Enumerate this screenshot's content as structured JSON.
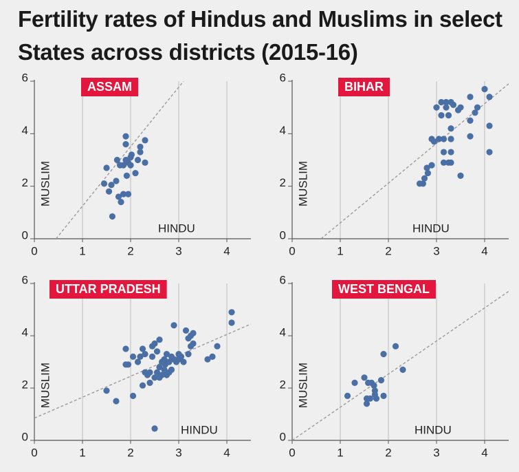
{
  "title": "Fertility rates of Hindus and Muslims in select States across districts (2015-16)",
  "chart_data": [
    {
      "type": "scatter",
      "title": "ASSAM",
      "xlabel": "HINDU",
      "ylabel": "MUSLIM",
      "color": "#4a6fa5",
      "xlim": [
        0,
        4.5
      ],
      "ylim": [
        0,
        6
      ],
      "xticks": [
        0,
        1,
        2,
        3,
        4
      ],
      "yticks": [
        0,
        2,
        4,
        6
      ],
      "grid": "x",
      "x": [
        1.45,
        1.5,
        1.55,
        1.6,
        1.62,
        1.7,
        1.72,
        1.75,
        1.78,
        1.8,
        1.85,
        1.85,
        1.9,
        1.9,
        1.9,
        1.92,
        1.95,
        1.95,
        2.0,
        2.0,
        2.02,
        2.1,
        2.15,
        2.2,
        2.2,
        2.3,
        2.3
      ],
      "y": [
        2.1,
        2.7,
        1.8,
        2.05,
        0.85,
        2.2,
        3.0,
        1.6,
        2.8,
        1.4,
        1.7,
        2.8,
        3.9,
        3.6,
        3.0,
        2.4,
        2.9,
        1.7,
        3.1,
        2.8,
        3.2,
        2.5,
        3.0,
        3.3,
        3.5,
        3.75,
        2.9
      ],
      "trendline": {
        "x": [
          0.45,
          3.1
        ],
        "y": [
          0,
          6
        ]
      }
    },
    {
      "type": "scatter",
      "title": "BIHAR",
      "xlabel": "HINDU",
      "ylabel": "MUSLIM",
      "color": "#4a6fa5",
      "xlim": [
        0,
        4.5
      ],
      "ylim": [
        0,
        6
      ],
      "xticks": [
        0,
        1,
        2,
        3,
        4
      ],
      "yticks": [
        0,
        2,
        4,
        6
      ],
      "grid": "x",
      "x": [
        2.65,
        2.72,
        2.75,
        2.8,
        2.82,
        2.9,
        2.9,
        2.95,
        3.0,
        3.05,
        3.1,
        3.1,
        3.15,
        3.15,
        3.15,
        3.2,
        3.2,
        3.25,
        3.25,
        3.3,
        3.3,
        3.3,
        3.3,
        3.3,
        3.35,
        3.45,
        3.5,
        3.5,
        3.7,
        3.7,
        3.7,
        3.8,
        3.85,
        4.0,
        4.1,
        4.1,
        4.1
      ],
      "y": [
        2.1,
        2.1,
        2.3,
        2.7,
        2.5,
        2.8,
        3.8,
        3.7,
        5.0,
        3.8,
        5.2,
        4.7,
        3.8,
        3.3,
        2.9,
        5.0,
        5.2,
        4.7,
        2.9,
        5.2,
        4.2,
        3.8,
        3.3,
        2.9,
        5.1,
        4.9,
        5.0,
        2.4,
        5.4,
        4.5,
        3.9,
        4.8,
        5.0,
        5.7,
        5.4,
        4.3,
        3.3
      ],
      "trendline": {
        "x": [
          0.6,
          4.5
        ],
        "y": [
          0,
          5.9
        ]
      }
    },
    {
      "type": "scatter",
      "title": "UTTAR PRADESH",
      "xlabel": "HINDU",
      "ylabel": "MUSLIM",
      "color": "#4a6fa5",
      "xlim": [
        0,
        4.5
      ],
      "ylim": [
        0,
        6
      ],
      "xticks": [
        0,
        1,
        2,
        3,
        4
      ],
      "yticks": [
        0,
        2,
        4,
        6
      ],
      "grid": "x",
      "x": [
        1.5,
        1.7,
        1.9,
        1.9,
        1.95,
        2.05,
        2.05,
        2.15,
        2.2,
        2.25,
        2.25,
        2.3,
        2.3,
        2.35,
        2.4,
        2.4,
        2.45,
        2.45,
        2.5,
        2.5,
        2.5,
        2.55,
        2.55,
        2.6,
        2.6,
        2.6,
        2.65,
        2.65,
        2.7,
        2.7,
        2.72,
        2.75,
        2.75,
        2.8,
        2.8,
        2.85,
        2.85,
        2.9,
        2.9,
        2.95,
        3.0,
        3.0,
        3.05,
        3.1,
        3.15,
        3.2,
        3.2,
        3.25,
        3.25,
        3.3,
        3.3,
        3.6,
        3.7,
        3.8,
        4.1,
        4.1
      ],
      "y": [
        1.9,
        1.5,
        3.5,
        2.9,
        2.9,
        3.2,
        1.7,
        3.0,
        3.2,
        3.5,
        2.1,
        2.6,
        3.3,
        2.5,
        2.2,
        2.6,
        3.6,
        3.2,
        3.7,
        2.4,
        0.45,
        3.4,
        2.6,
        3.85,
        2.8,
        2.4,
        3.0,
        2.5,
        3.1,
        2.7,
        2.9,
        3.3,
        2.5,
        3.0,
        2.6,
        3.2,
        2.7,
        4.4,
        3.1,
        3.0,
        3.3,
        3.1,
        3.2,
        3.0,
        4.2,
        3.9,
        3.3,
        4.0,
        3.6,
        4.1,
        3.7,
        3.1,
        3.2,
        3.6,
        4.9,
        4.5
      ],
      "trendline": {
        "x": [
          0,
          4.5
        ],
        "y": [
          0.85,
          4.45
        ]
      }
    },
    {
      "type": "scatter",
      "title": "WEST BENGAL",
      "xlabel": "HINDU",
      "ylabel": "MUSLIM",
      "color": "#4a6fa5",
      "xlim": [
        0,
        4.5
      ],
      "ylim": [
        0,
        6
      ],
      "xticks": [
        0,
        1,
        2,
        3,
        4
      ],
      "yticks": [
        0,
        2,
        4,
        6
      ],
      "grid": "x",
      "x": [
        1.15,
        1.3,
        1.5,
        1.55,
        1.55,
        1.58,
        1.62,
        1.65,
        1.7,
        1.72,
        1.72,
        1.75,
        1.85,
        1.9,
        1.9,
        2.15,
        2.3
      ],
      "y": [
        1.7,
        2.2,
        2.4,
        1.6,
        1.4,
        2.2,
        1.6,
        2.2,
        2.1,
        1.9,
        1.75,
        1.6,
        2.3,
        3.3,
        1.7,
        3.6,
        2.7
      ],
      "trendline": {
        "x": [
          0,
          4.5
        ],
        "y": [
          0,
          5.7
        ]
      }
    }
  ]
}
